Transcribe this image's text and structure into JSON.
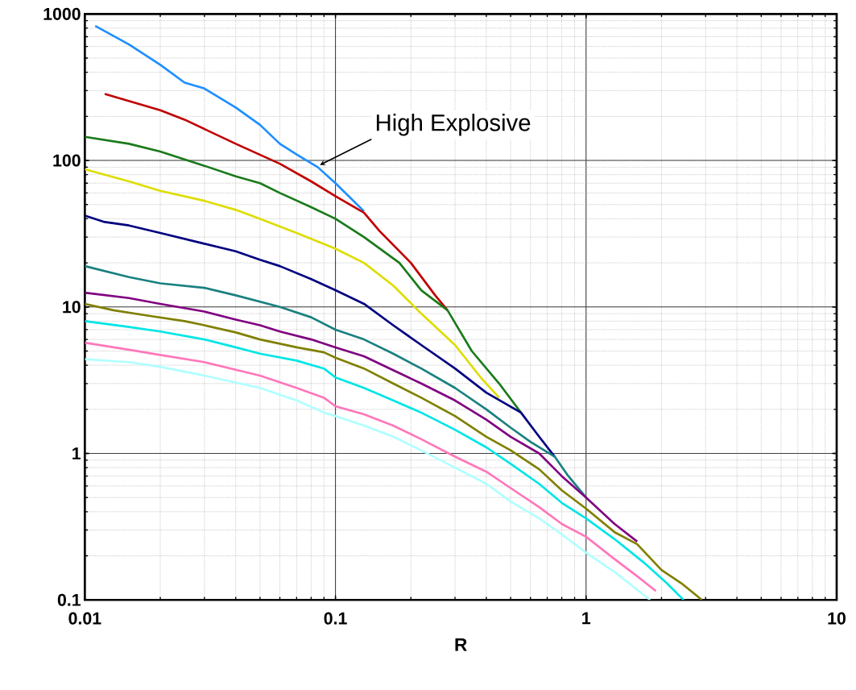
{
  "chart_data": {
    "type": "line",
    "xlabel": "R",
    "log": "xy",
    "grid": true,
    "xlim": [
      0.01,
      10
    ],
    "ylim": [
      0.1,
      1000
    ],
    "xticks": [
      0.01,
      0.1,
      1,
      10
    ],
    "yticks": [
      0.1,
      1,
      10,
      100,
      1000
    ],
    "annotations": [
      {
        "text": "High Explosive",
        "x": 0.085,
        "y": 90
      }
    ],
    "series": [
      {
        "color": "#1e8fff",
        "x": [
          0.011,
          0.015,
          0.02,
          0.025,
          0.03,
          0.04,
          0.05,
          0.06,
          0.07,
          0.085,
          0.1,
          0.13
        ],
        "values": [
          830,
          620,
          450,
          340,
          310,
          230,
          175,
          130,
          110,
          90,
          70,
          45
        ]
      },
      {
        "color": "#c00000",
        "x": [
          0.012,
          0.02,
          0.025,
          0.04,
          0.06,
          0.08,
          0.1,
          0.13,
          0.15,
          0.2,
          0.25,
          0.28
        ],
        "values": [
          285,
          220,
          190,
          130,
          95,
          72,
          57,
          44,
          33,
          20,
          12,
          9.5
        ]
      },
      {
        "color": "#1a7a1a",
        "x": [
          0.01,
          0.015,
          0.02,
          0.03,
          0.04,
          0.05,
          0.06,
          0.08,
          0.1,
          0.13,
          0.18,
          0.22,
          0.28,
          0.35,
          0.45,
          0.55
        ],
        "values": [
          145,
          130,
          115,
          92,
          78,
          70,
          60,
          48,
          40,
          30,
          20,
          13,
          9.5,
          5,
          3,
          1.9
        ]
      },
      {
        "color": "#dddd00",
        "x": [
          0.01,
          0.015,
          0.02,
          0.03,
          0.04,
          0.05,
          0.07,
          0.1,
          0.13,
          0.17,
          0.22,
          0.3,
          0.38,
          0.45
        ],
        "values": [
          87,
          72,
          62,
          53,
          46,
          40,
          32,
          25,
          20,
          14,
          9,
          5.5,
          3.3,
          2.4
        ]
      },
      {
        "color": "#000080",
        "x": [
          0.01,
          0.012,
          0.015,
          0.02,
          0.03,
          0.04,
          0.05,
          0.06,
          0.08,
          0.1,
          0.13,
          0.17,
          0.22,
          0.3,
          0.4,
          0.55,
          0.65,
          0.75
        ],
        "values": [
          42,
          38,
          36,
          32,
          27,
          24,
          21,
          19,
          15.5,
          13,
          10.5,
          7.5,
          5.5,
          3.8,
          2.6,
          1.9,
          1.3,
          0.95
        ]
      },
      {
        "color": "#1a8080",
        "x": [
          0.01,
          0.015,
          0.02,
          0.03,
          0.04,
          0.06,
          0.08,
          0.1,
          0.13,
          0.17,
          0.22,
          0.3,
          0.4,
          0.5,
          0.6,
          0.75,
          0.85,
          1.0
        ],
        "values": [
          19,
          16,
          14.5,
          13.5,
          12,
          10,
          8.5,
          7,
          6,
          4.8,
          3.8,
          2.8,
          2.0,
          1.5,
          1.2,
          0.95,
          0.7,
          0.5
        ]
      },
      {
        "color": "#800080",
        "x": [
          0.01,
          0.015,
          0.02,
          0.03,
          0.04,
          0.05,
          0.06,
          0.08,
          0.1,
          0.13,
          0.17,
          0.22,
          0.3,
          0.4,
          0.5,
          0.65,
          0.8,
          1.0,
          1.3,
          1.6
        ],
        "values": [
          12.5,
          11.5,
          10.5,
          9.3,
          8.2,
          7.5,
          6.8,
          6.0,
          5.3,
          4.6,
          3.7,
          3.0,
          2.3,
          1.7,
          1.3,
          1.0,
          0.7,
          0.5,
          0.33,
          0.25
        ]
      },
      {
        "color": "#808000",
        "x": [
          0.01,
          0.013,
          0.018,
          0.025,
          0.03,
          0.04,
          0.05,
          0.07,
          0.09,
          0.1,
          0.13,
          0.17,
          0.22,
          0.3,
          0.4,
          0.5,
          0.65,
          0.8,
          1.0,
          1.3,
          1.6,
          2.0,
          2.4,
          2.9
        ],
        "values": [
          10.5,
          9.5,
          8.7,
          8.0,
          7.5,
          6.7,
          6.0,
          5.3,
          4.9,
          4.5,
          3.8,
          3.0,
          2.4,
          1.8,
          1.3,
          1.05,
          0.78,
          0.56,
          0.42,
          0.29,
          0.24,
          0.16,
          0.13,
          0.1
        ]
      },
      {
        "color": "#00e5e5",
        "x": [
          0.01,
          0.015,
          0.02,
          0.03,
          0.04,
          0.05,
          0.07,
          0.09,
          0.1,
          0.13,
          0.17,
          0.22,
          0.3,
          0.4,
          0.5,
          0.65,
          0.8,
          1.0,
          1.3,
          1.7,
          2.1,
          2.45
        ],
        "values": [
          8.0,
          7.3,
          6.8,
          6.0,
          5.3,
          4.8,
          4.3,
          3.8,
          3.3,
          2.8,
          2.3,
          1.9,
          1.45,
          1.1,
          0.85,
          0.62,
          0.46,
          0.36,
          0.26,
          0.18,
          0.13,
          0.1
        ]
      },
      {
        "color": "#ff77bb",
        "x": [
          0.01,
          0.015,
          0.02,
          0.03,
          0.05,
          0.07,
          0.09,
          0.1,
          0.13,
          0.17,
          0.22,
          0.3,
          0.4,
          0.5,
          0.65,
          0.8,
          1.0,
          1.3,
          1.6,
          1.9
        ],
        "values": [
          5.7,
          5.1,
          4.7,
          4.2,
          3.4,
          2.8,
          2.4,
          2.1,
          1.85,
          1.55,
          1.25,
          0.95,
          0.75,
          0.58,
          0.43,
          0.33,
          0.27,
          0.19,
          0.145,
          0.115
        ]
      },
      {
        "color": "#b0ffff",
        "x": [
          0.01,
          0.015,
          0.02,
          0.03,
          0.05,
          0.07,
          0.09,
          0.1,
          0.13,
          0.17,
          0.22,
          0.3,
          0.4,
          0.5,
          0.65,
          0.8,
          1.0,
          1.3,
          1.8
        ],
        "values": [
          4.4,
          4.2,
          3.9,
          3.4,
          2.8,
          2.3,
          1.9,
          1.8,
          1.55,
          1.3,
          1.05,
          0.8,
          0.62,
          0.47,
          0.36,
          0.28,
          0.21,
          0.155,
          0.1
        ]
      }
    ]
  }
}
